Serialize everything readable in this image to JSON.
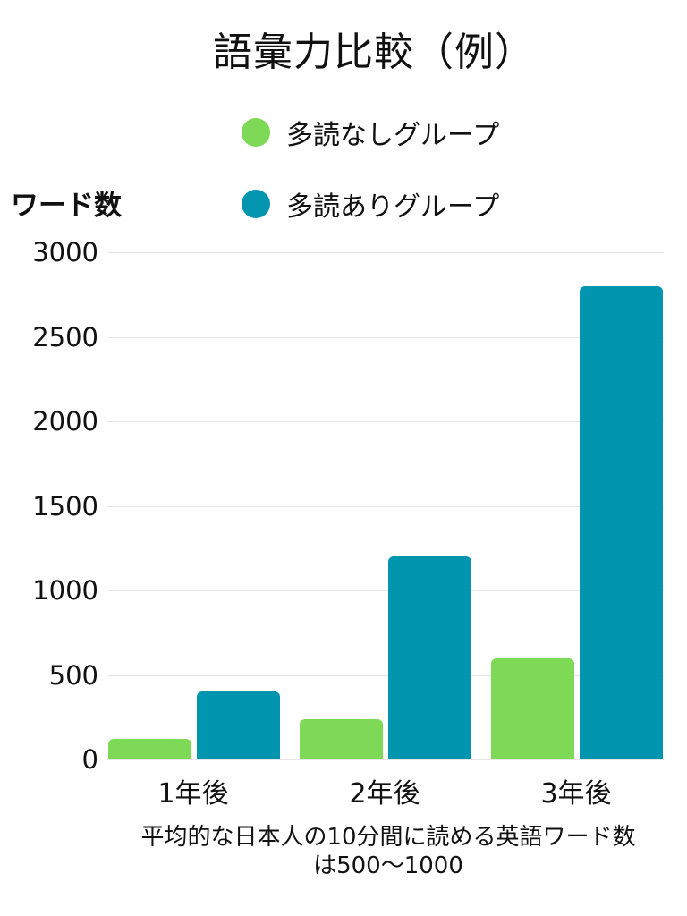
{
  "chart_data": {
    "type": "bar",
    "title": "語彙力比較（例）",
    "xlabel": "",
    "ylabel": "ワード数",
    "categories": [
      "1年後",
      "2年後",
      "3年後"
    ],
    "series": [
      {
        "name": "多読なしグループ",
        "color": "#7ed957",
        "values": [
          120,
          240,
          600
        ]
      },
      {
        "name": "多読ありグループ",
        "color": "#0295b0",
        "values": [
          400,
          1200,
          2800
        ]
      }
    ],
    "ylim": [
      0,
      3000
    ],
    "yticks": [
      0,
      500,
      1000,
      1500,
      2000,
      2500,
      3000
    ],
    "grid": true,
    "legend_position": "top",
    "annotation": "平均的な日本人の10分間に読める英語ワード数は500〜1000"
  },
  "title": "語彙力比較（例）",
  "ylabel": "ワード数",
  "legend": [
    {
      "label": "多読なしグループ",
      "color": "#7ed957"
    },
    {
      "label": "多読ありグループ",
      "color": "#0295b0"
    }
  ],
  "yticks": [
    "0",
    "500",
    "1000",
    "1500",
    "2000",
    "2500",
    "3000"
  ],
  "xticks": [
    "1年後",
    "2年後",
    "3年後"
  ],
  "note_line1": "平均的な日本人の10分間に読める英語ワード数",
  "note_line2": "は500〜1000"
}
